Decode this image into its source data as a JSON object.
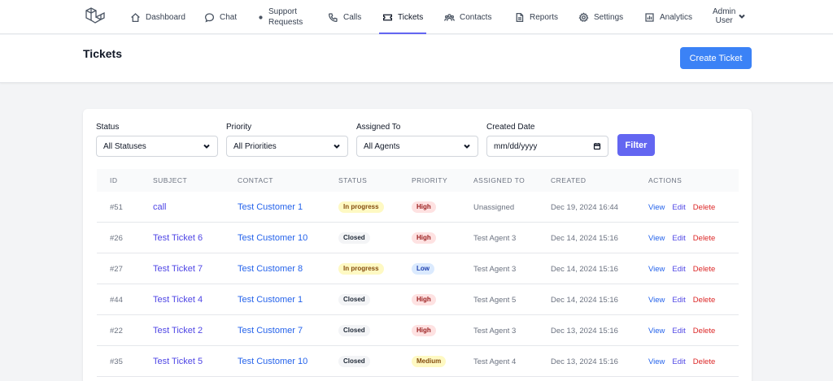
{
  "nav": {
    "items": [
      {
        "label": "Dashboard",
        "icon": "home-icon"
      },
      {
        "label": "Chat",
        "icon": "chat-icon"
      },
      {
        "label": "Support Requests",
        "icon": "dot-icon"
      },
      {
        "label": "Calls",
        "icon": "phone-icon"
      },
      {
        "label": "Tickets",
        "icon": "ticket-icon",
        "active": true
      },
      {
        "label": "Contacts",
        "icon": "users-icon"
      },
      {
        "label": "Reports",
        "icon": "document-icon"
      },
      {
        "label": "Settings",
        "icon": "gear-icon"
      },
      {
        "label": "Analytics",
        "icon": "chart-icon"
      }
    ],
    "user_line1": "Admin",
    "user_line2": "User"
  },
  "header": {
    "title": "Tickets",
    "create_label": "Create Ticket"
  },
  "filters": {
    "status_label": "Status",
    "status_value": "All Statuses",
    "priority_label": "Priority",
    "priority_value": "All Priorities",
    "assigned_label": "Assigned To",
    "assigned_value": "All Agents",
    "date_label": "Created Date",
    "date_placeholder": "mm/dd/yyyy",
    "filter_label": "Filter"
  },
  "table": {
    "columns": [
      "ID",
      "Subject",
      "Contact",
      "Status",
      "Priority",
      "Assigned To",
      "Created",
      "Actions"
    ],
    "rows": [
      {
        "id": "#51",
        "subject": "call",
        "contact": "Test Customer 1",
        "status": "In progress",
        "priority": "High",
        "assigned": "Unassigned",
        "created": "Dec 19, 2024 16:44"
      },
      {
        "id": "#26",
        "subject": "Test Ticket 6",
        "contact": "Test Customer 10",
        "status": "Closed",
        "priority": "High",
        "assigned": "Test Agent 3",
        "created": "Dec 14, 2024 15:16"
      },
      {
        "id": "#27",
        "subject": "Test Ticket 7",
        "contact": "Test Customer 8",
        "status": "In progress",
        "priority": "Low",
        "assigned": "Test Agent 3",
        "created": "Dec 14, 2024 15:16"
      },
      {
        "id": "#44",
        "subject": "Test Ticket 4",
        "contact": "Test Customer 1",
        "status": "Closed",
        "priority": "High",
        "assigned": "Test Agent 5",
        "created": "Dec 14, 2024 15:16"
      },
      {
        "id": "#22",
        "subject": "Test Ticket 2",
        "contact": "Test Customer 7",
        "status": "Closed",
        "priority": "High",
        "assigned": "Test Agent 3",
        "created": "Dec 13, 2024 15:16"
      },
      {
        "id": "#35",
        "subject": "Test Ticket 5",
        "contact": "Test Customer 10",
        "status": "Closed",
        "priority": "Medium",
        "assigned": "Test Agent 4",
        "created": "Dec 13, 2024 15:16"
      }
    ],
    "actions": {
      "view": "View",
      "edit": "Edit",
      "delete": "Delete"
    }
  },
  "colors": {
    "primary": "#3b82f6",
    "accent": "#6366f1",
    "delete": "#dc2626"
  }
}
